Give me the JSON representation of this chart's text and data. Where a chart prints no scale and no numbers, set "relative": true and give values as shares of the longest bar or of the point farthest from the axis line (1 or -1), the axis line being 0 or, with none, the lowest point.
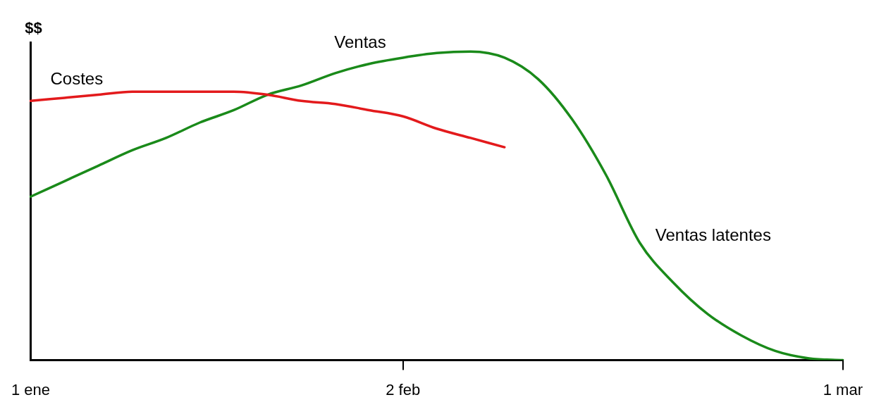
{
  "chart_data": {
    "type": "line",
    "relative": true,
    "ylabel": "$$",
    "legend": false,
    "grid": false,
    "marker": "none",
    "line_style": "solid",
    "categories": [
      "1 ene",
      null,
      null,
      null,
      null,
      null,
      null,
      null,
      null,
      null,
      null,
      "2 feb",
      null,
      null,
      null,
      null,
      null,
      null,
      null,
      null,
      null,
      null,
      null,
      null,
      "1 mar"
    ],
    "series": [
      {
        "name": "Costes",
        "color": "#e31a1c",
        "values": [
          0.84,
          0.85,
          0.86,
          0.87,
          0.87,
          0.87,
          0.87,
          0.86,
          0.84,
          0.83,
          0.81,
          0.79,
          0.75,
          0.72,
          0.69,
          null,
          null,
          null,
          null,
          null,
          null,
          null,
          null,
          null,
          null
        ]
      },
      {
        "name": "Ventas",
        "color": "#1a8a1a",
        "values": [
          0.53,
          0.58,
          0.63,
          0.68,
          0.72,
          0.77,
          0.81,
          0.86,
          0.89,
          0.93,
          0.96,
          0.98,
          0.995,
          1,
          0.98,
          0.91,
          0.78,
          0.6,
          0.38,
          0.25,
          0.15,
          0.08,
          0.03,
          0.006,
          0
        ]
      }
    ],
    "annotations": [
      "Ventas latentes"
    ]
  }
}
